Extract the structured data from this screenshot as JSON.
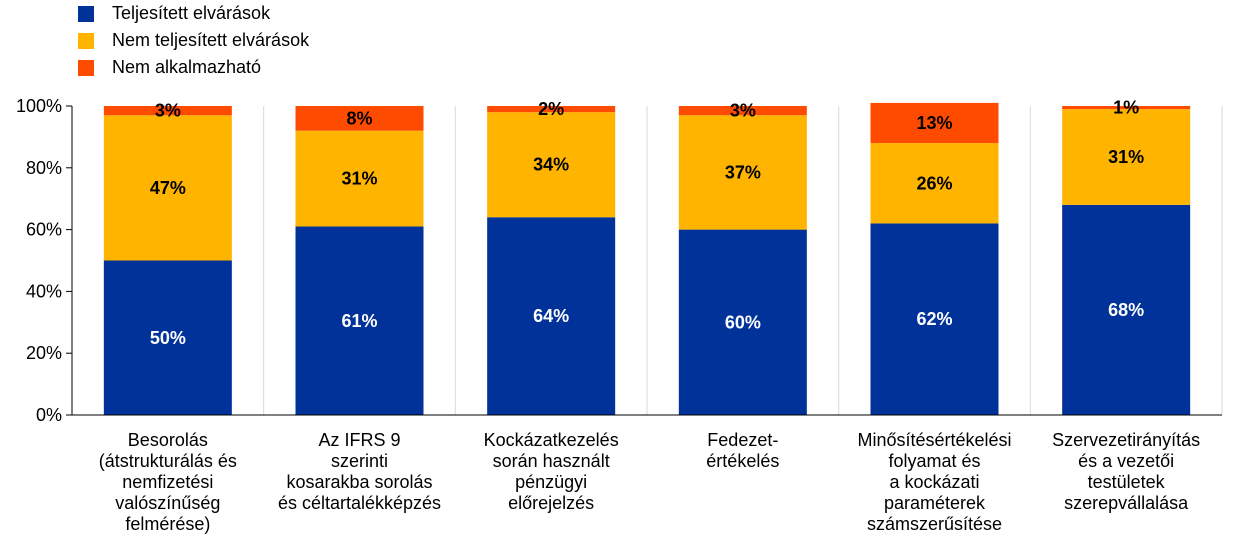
{
  "chart_data": {
    "type": "bar",
    "stacked": true,
    "categories": [
      "Besorolás (átstrukturálás és nemfizetési valószínűség felmérése)",
      "Az IFRS 9 szerinti kosarakba sorolás és céltartalékképzés",
      "Kockázatkezelés során használt pénzügyi előrejelzés",
      "Fedezet-értékelés",
      "Minősítésértékelési folyamat és a kockázati paraméterek számszerűsítése",
      "Szervezetirányítás és a vezetői testületek szerepvállalása"
    ],
    "category_lines": [
      [
        "Besorolás",
        "(átstrukturálás és",
        "nemfizetési",
        "valószínűség",
        "felmérése)"
      ],
      [
        "Az IFRS 9",
        "szerinti",
        "kosarakba sorolás",
        "és céltartalékképzés"
      ],
      [
        "Kockázatkezelés",
        "során használt",
        "pénzügyi",
        "előrejelzés"
      ],
      [
        "Fedezet-",
        "értékelés"
      ],
      [
        "Minősítésértékelési",
        "folyamat és",
        "a kockázati",
        "paraméterek",
        "számszerűsítése"
      ],
      [
        "Szervezetirányítás",
        "és a vezetői",
        "testületek",
        "szerepvállalása"
      ]
    ],
    "series": [
      {
        "name": "Teljesített elvárások",
        "values": [
          50,
          61,
          64,
          60,
          62,
          68
        ],
        "labels": [
          "50%",
          "61%",
          "64%",
          "60%",
          "62%",
          "68%"
        ],
        "color": "#003299",
        "label_color": "#ffffff"
      },
      {
        "name": "Nem teljesített elvárások",
        "values": [
          47,
          31,
          34,
          37,
          26,
          31
        ],
        "labels": [
          "47%",
          "31%",
          "34%",
          "37%",
          "26%",
          "31%"
        ],
        "color": "#ffb400",
        "label_color": "#000000"
      },
      {
        "name": "Nem alkalmazható",
        "values": [
          3,
          8,
          2,
          3,
          13,
          1
        ],
        "labels": [
          "3%",
          "8%",
          "2%",
          "3%",
          "13%",
          "1%"
        ],
        "color": "#ff4b00",
        "label_color": "#000000"
      }
    ],
    "y_ticks": [
      "0%",
      "20%",
      "40%",
      "60%",
      "80%",
      "100%"
    ],
    "ylim": [
      0,
      100
    ],
    "grid": "vertical-separators",
    "legend_position": "top-left"
  }
}
